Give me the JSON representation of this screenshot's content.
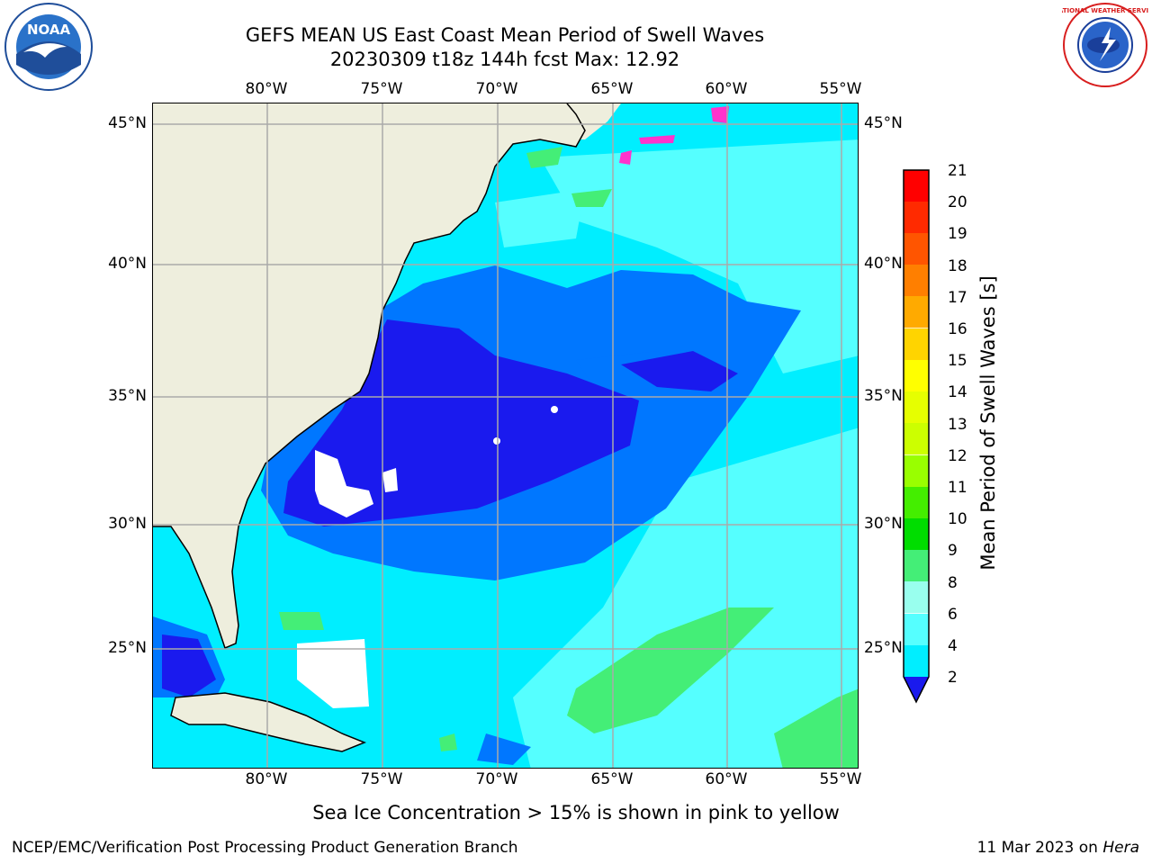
{
  "title_line1": "GEFS MEAN US East Coast Mean Period of Swell Waves",
  "title_line2": "20230309 t18z 144h fcst   Max: 12.92",
  "logos": {
    "left": "NOAA",
    "right": "NATIONAL WEATHER SERVICE"
  },
  "lon_ticks": [
    "80°W",
    "75°W",
    "70°W",
    "65°W",
    "60°W",
    "55°W"
  ],
  "lat_ticks": [
    "45°N",
    "40°N",
    "35°N",
    "30°N",
    "25°N"
  ],
  "colorbar": {
    "title": "Mean Period of Swell Waves [s]",
    "labels": [
      "21",
      "20",
      "19",
      "18",
      "17",
      "16",
      "15",
      "14",
      "13",
      "12",
      "11",
      "10",
      "9",
      "8",
      "6",
      "4",
      "2"
    ],
    "colors": [
      "#ff0000",
      "#ff2a00",
      "#ff5500",
      "#ff7f00",
      "#ffaa00",
      "#ffd400",
      "#ffff00",
      "#e6ff00",
      "#ccff00",
      "#99ff00",
      "#44ee00",
      "#00dd00",
      "#44ee77",
      "#99ffee",
      "#55ffff",
      "#00eeff",
      "#0077ff"
    ],
    "under_color": "#1a1aee"
  },
  "map_colors": {
    "land": "#eeeedd",
    "lt_blue": "#00eeff",
    "pale": "#55ffff",
    "mid_blue": "#0077ff",
    "deep_blue": "#1a1aee",
    "green": "#44ee77",
    "ice_magenta": "#ff33cc"
  },
  "note": "Sea Ice Concentration > 15% is shown in pink to yellow",
  "footer_left": "NCEP/EMC/Verification Post Processing Product Generation Branch",
  "footer_date": "11 Mar 2023 on ",
  "footer_host": "Hera"
}
